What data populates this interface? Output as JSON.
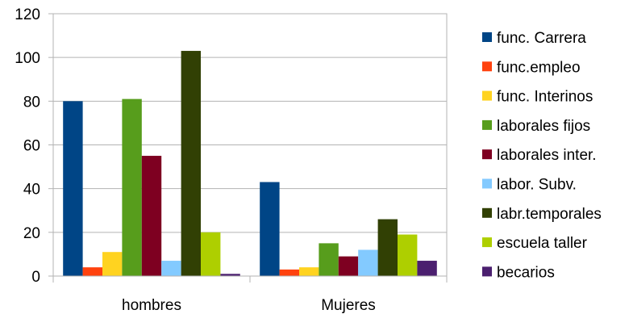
{
  "chart_data": {
    "type": "bar",
    "categories": [
      "hombres",
      "Mujeres"
    ],
    "series": [
      {
        "name": "func. Carrera",
        "values": [
          80,
          43
        ],
        "color": "#004586"
      },
      {
        "name": "func.empleo",
        "values": [
          4,
          3
        ],
        "color": "#ff420e"
      },
      {
        "name": "func. Interinos",
        "values": [
          11,
          4
        ],
        "color": "#ffd320"
      },
      {
        "name": "laborales fijos",
        "values": [
          81,
          15
        ],
        "color": "#579d1c"
      },
      {
        "name": "laborales inter.",
        "values": [
          55,
          9
        ],
        "color": "#7e0021"
      },
      {
        "name": "labor. Subv.",
        "values": [
          7,
          12
        ],
        "color": "#83caff"
      },
      {
        "name": "labr.temporales",
        "values": [
          103,
          26
        ],
        "color": "#314004"
      },
      {
        "name": "escuela taller",
        "values": [
          20,
          19
        ],
        "color": "#aecf00"
      },
      {
        "name": "becarios",
        "values": [
          1,
          7
        ],
        "color": "#4b1f6f"
      }
    ],
    "ylim": [
      0,
      120
    ],
    "yticks": [
      "0",
      "20",
      "40",
      "60",
      "80",
      "100",
      "120"
    ],
    "grid": true,
    "legend": "right",
    "title": "",
    "xlabel": "",
    "ylabel": ""
  }
}
